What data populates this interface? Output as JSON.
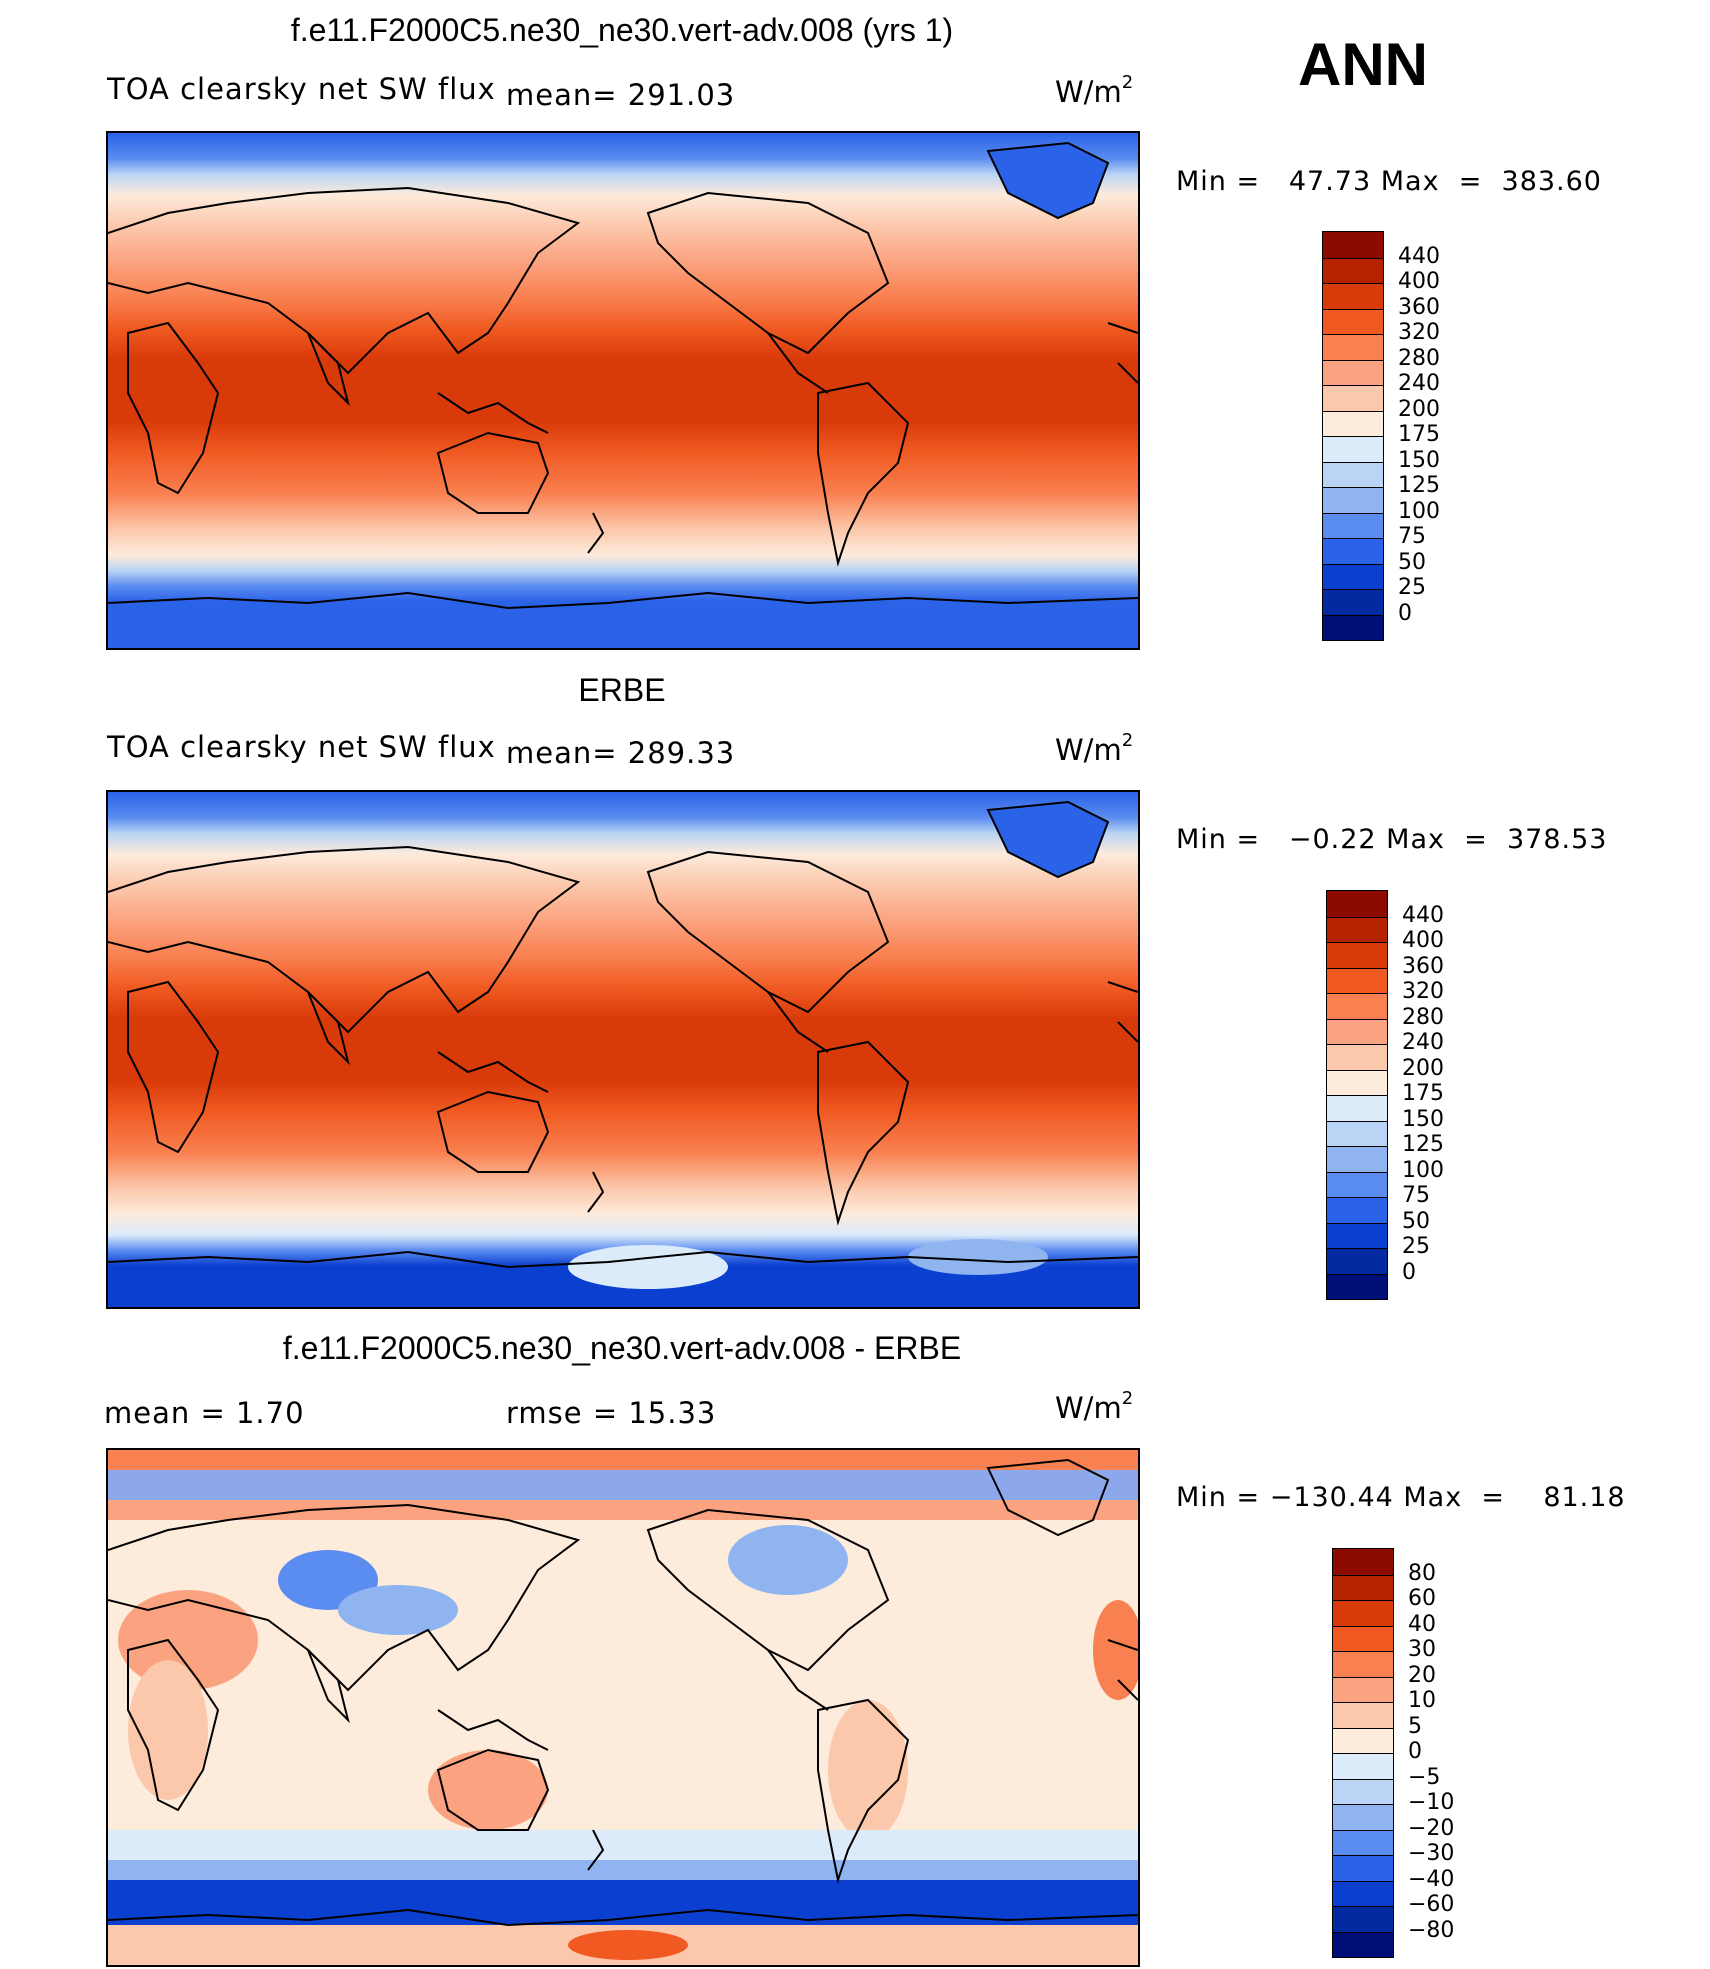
{
  "season": "ANN",
  "units_text": "W/m",
  "units_sup": "2",
  "panels": [
    {
      "title": "f.e11.F2000C5.ne30_ne30.vert-adv.008 (yrs 1)",
      "left_label": "TOA clearsky net SW flux",
      "center_label": "mean=  291.03",
      "minmax": "Min =   47.73 Max  =  383.60",
      "levels": [
        "440",
        "400",
        "360",
        "320",
        "280",
        "240",
        "200",
        "175",
        "150",
        "125",
        "100",
        "75",
        "50",
        "25",
        "0"
      ],
      "colors": [
        "#8c0a00",
        "#b52200",
        "#d93a0a",
        "#f05a22",
        "#f98050",
        "#fba380",
        "#fcc8ac",
        "#fdebdc",
        "#dcebfa",
        "#b9d4f5",
        "#8fb4f0",
        "#5b8cf0",
        "#2a62e8",
        "#0a3fd0",
        "#032aa0",
        "#000f78"
      ]
    },
    {
      "title": "ERBE",
      "left_label": "TOA clearsky net SW flux",
      "center_label": "mean=  289.33",
      "minmax": "Min =   −0.22 Max  =  378.53",
      "levels": [
        "440",
        "400",
        "360",
        "320",
        "280",
        "240",
        "200",
        "175",
        "150",
        "125",
        "100",
        "75",
        "50",
        "25",
        "0"
      ],
      "colors": [
        "#8c0a00",
        "#b52200",
        "#d93a0a",
        "#f05a22",
        "#f98050",
        "#fba380",
        "#fcc8ac",
        "#fdebdc",
        "#dcebfa",
        "#b9d4f5",
        "#8fb4f0",
        "#5b8cf0",
        "#2a62e8",
        "#0a3fd0",
        "#032aa0",
        "#000f78"
      ]
    },
    {
      "title": "f.e11.F2000C5.ne30_ne30.vert-adv.008 - ERBE",
      "left_label": "mean =     1.70",
      "center_label": "rmse =    15.33",
      "minmax": "Min = −130.44 Max  =    81.18",
      "levels": [
        "80",
        "60",
        "40",
        "30",
        "20",
        "10",
        "5",
        "0",
        "−5",
        "−10",
        "−20",
        "−30",
        "−40",
        "−60",
        "−80"
      ],
      "colors": [
        "#8c0a00",
        "#b52200",
        "#d93a0a",
        "#f05a22",
        "#f98050",
        "#fba380",
        "#fcc8ac",
        "#fdebdc",
        "#dcebfa",
        "#b9d4f5",
        "#8fb4f0",
        "#5b8cf0",
        "#2a62e8",
        "#0a3fd0",
        "#032aa0",
        "#000f78"
      ]
    }
  ]
}
